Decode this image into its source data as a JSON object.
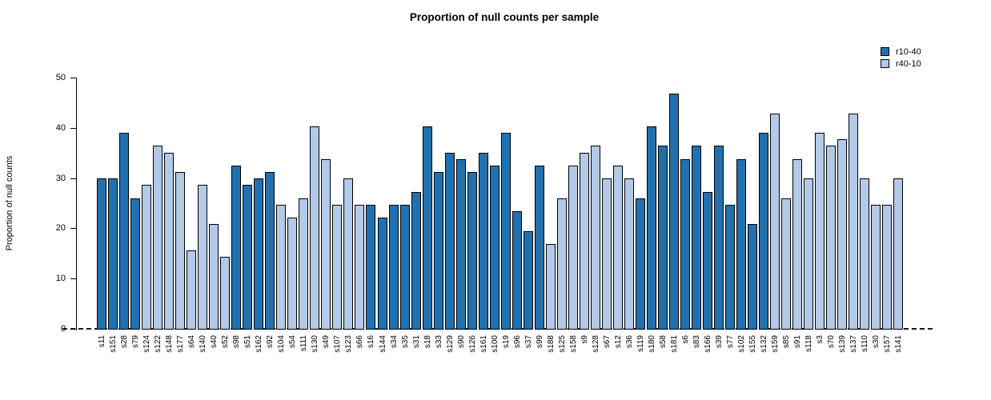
{
  "chart_data": {
    "type": "bar",
    "title": "Proportion of null counts per sample",
    "xlabel": "",
    "ylabel": "Proportion of null counts",
    "ylim": [
      0,
      50
    ],
    "yticks": [
      0,
      10,
      20,
      30,
      40,
      50
    ],
    "grid": false,
    "baseline_style": "dashed",
    "legend_position": "top-right",
    "legend": [
      {
        "label": "r10-40",
        "color": "#2171b0"
      },
      {
        "label": "r40-10",
        "color": "#b3c9e8"
      }
    ],
    "categories": [
      "s11",
      "s151",
      "s28",
      "s79",
      "s124",
      "s122",
      "s148",
      "s177",
      "s64",
      "s140",
      "s40",
      "s52",
      "s98",
      "s51",
      "s162",
      "s92",
      "s104",
      "s54",
      "s111",
      "s130",
      "s49",
      "s107",
      "s123",
      "s66",
      "s16",
      "s144",
      "s34",
      "s35",
      "s31",
      "s18",
      "s33",
      "s129",
      "s90",
      "s126",
      "s161",
      "s100",
      "s19",
      "s96",
      "s37",
      "s99",
      "s188",
      "s125",
      "s158",
      "s9",
      "s128",
      "s67",
      "s12",
      "s36",
      "s119",
      "s180",
      "s58",
      "s181",
      "s6",
      "s83",
      "s166",
      "s39",
      "s77",
      "s102",
      "s155",
      "s132",
      "s159",
      "s85",
      "s91",
      "s118",
      "s3",
      "s70",
      "s139",
      "s137",
      "s110",
      "s30",
      "s157",
      "s141"
    ],
    "values": [
      29.9,
      29.9,
      39.0,
      26.0,
      28.6,
      36.4,
      35.1,
      31.2,
      15.6,
      28.6,
      20.8,
      14.3,
      32.5,
      28.6,
      29.9,
      31.2,
      24.7,
      22.1,
      26.0,
      40.3,
      33.8,
      24.7,
      29.9,
      24.7,
      24.7,
      22.1,
      24.7,
      24.7,
      27.3,
      40.3,
      31.2,
      35.1,
      33.8,
      31.2,
      35.1,
      32.5,
      39.0,
      23.4,
      19.5,
      32.5,
      16.9,
      26.0,
      32.5,
      35.1,
      36.4,
      29.9,
      32.5,
      29.9,
      26.0,
      40.3,
      36.4,
      46.8,
      33.8,
      36.4,
      27.3,
      36.4,
      24.7,
      33.8,
      20.8,
      39.0,
      42.9,
      26.0,
      33.8,
      29.9,
      39.0,
      36.4,
      37.7,
      42.9,
      29.9,
      24.7,
      24.7,
      29.9
    ],
    "groups": [
      "r10-40",
      "r10-40",
      "r10-40",
      "r10-40",
      "r40-10",
      "r40-10",
      "r40-10",
      "r40-10",
      "r40-10",
      "r40-10",
      "r40-10",
      "r40-10",
      "r10-40",
      "r10-40",
      "r10-40",
      "r10-40",
      "r40-10",
      "r40-10",
      "r40-10",
      "r40-10",
      "r40-10",
      "r40-10",
      "r40-10",
      "r40-10",
      "r10-40",
      "r10-40",
      "r10-40",
      "r10-40",
      "r10-40",
      "r10-40",
      "r10-40",
      "r10-40",
      "r10-40",
      "r10-40",
      "r10-40",
      "r10-40",
      "r10-40",
      "r10-40",
      "r10-40",
      "r10-40",
      "r40-10",
      "r40-10",
      "r40-10",
      "r40-10",
      "r40-10",
      "r40-10",
      "r40-10",
      "r40-10",
      "r10-40",
      "r10-40",
      "r10-40",
      "r10-40",
      "r10-40",
      "r10-40",
      "r10-40",
      "r10-40",
      "r10-40",
      "r10-40",
      "r10-40",
      "r10-40",
      "r40-10",
      "r40-10",
      "r40-10",
      "r40-10",
      "r40-10",
      "r40-10",
      "r40-10",
      "r40-10",
      "r40-10",
      "r40-10",
      "r40-10",
      "r40-10"
    ]
  }
}
